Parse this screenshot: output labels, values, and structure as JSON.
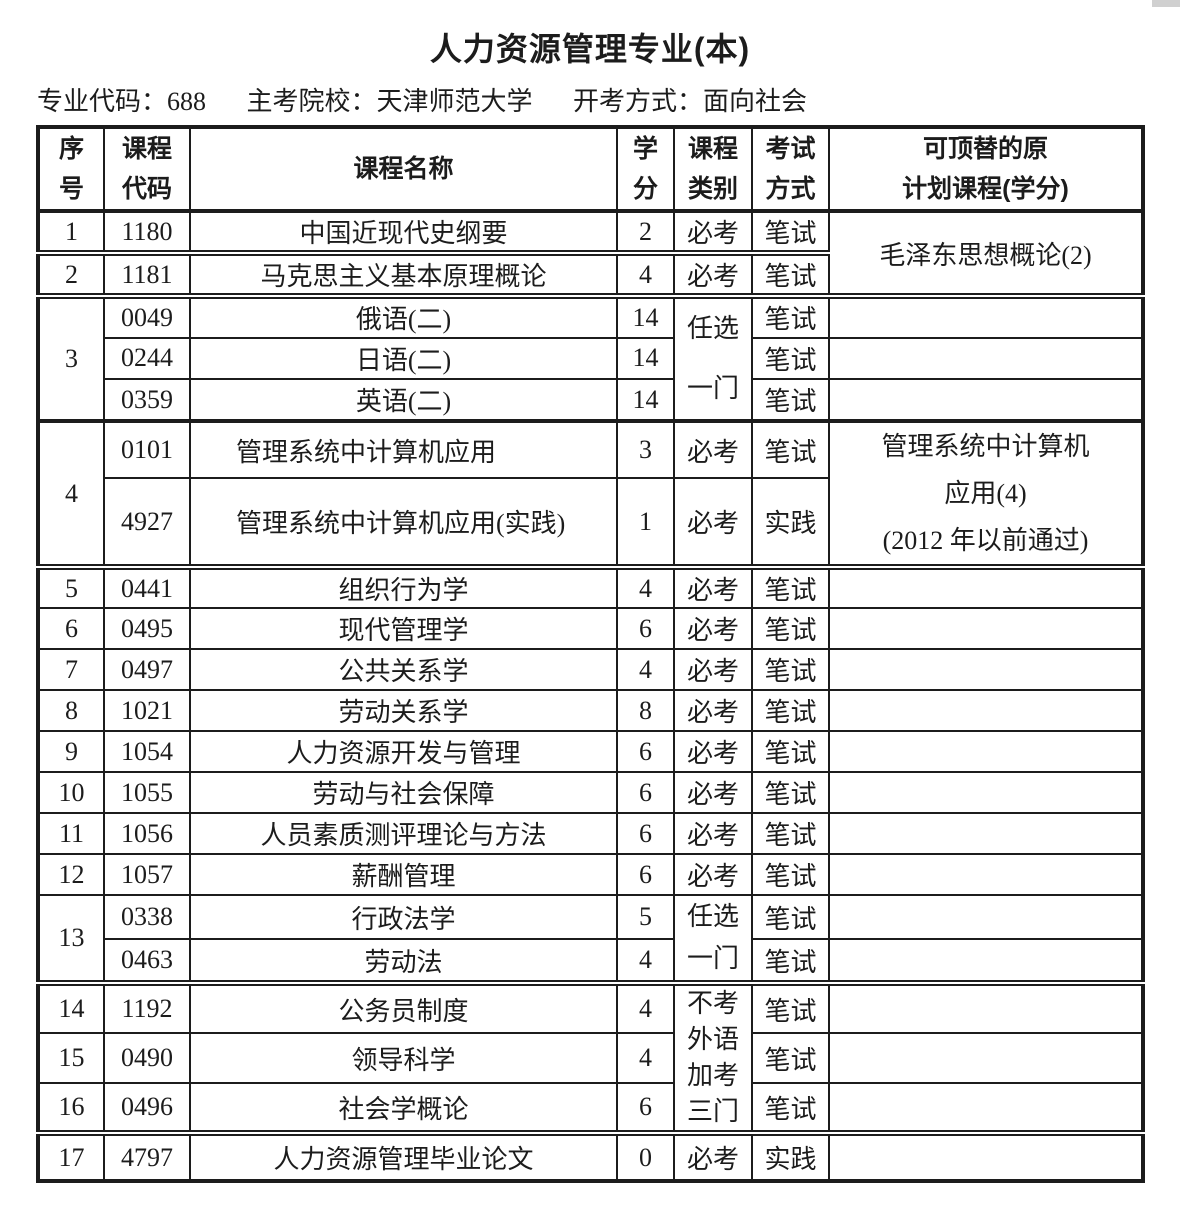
{
  "doc": {
    "title": "人力资源管理专业(本)",
    "meta": [
      "专业代码：688",
      "主考院校：天津师范大学",
      "开考方式：面向社会"
    ]
  },
  "table": {
    "columns": [
      {
        "key": "seq",
        "header_lines": [
          "序",
          "号"
        ]
      },
      {
        "key": "course-code",
        "header_lines": [
          "课程",
          "代码"
        ]
      },
      {
        "key": "course-name",
        "header_lines": [
          "课程名称"
        ]
      },
      {
        "key": "credits",
        "header_lines": [
          "学",
          "分"
        ]
      },
      {
        "key": "course-type",
        "header_lines": [
          "课程",
          "类别"
        ]
      },
      {
        "key": "exam-method",
        "header_lines": [
          "考试",
          "方式"
        ]
      },
      {
        "key": "replacement",
        "header_lines": [
          "可顶替的原",
          "计划课程(学分)"
        ]
      }
    ],
    "rows": [
      [
        {
          "text": "1"
        },
        {
          "text": "1180"
        },
        {
          "text": "中国近现代史纲要"
        },
        {
          "text": "2"
        },
        {
          "text": "必考"
        },
        {
          "text": "笔试"
        },
        {
          "text": "毛泽东思想概论(2)",
          "rowspan": 2
        }
      ],
      [
        {
          "text": "2"
        },
        {
          "text": "1181"
        },
        {
          "text": "马克思主义基本原理概论"
        },
        {
          "text": "4"
        },
        {
          "text": "必考"
        },
        {
          "text": "笔试"
        }
      ],
      [
        {
          "text": "3",
          "rowspan": 3
        },
        {
          "text": "0049"
        },
        {
          "text": "俄语(二)"
        },
        {
          "text": "14"
        },
        {
          "lines": [
            "任选",
            "一门"
          ],
          "rowspan": 3
        },
        {
          "text": "笔试"
        },
        {
          "text": ""
        }
      ],
      [
        {
          "text": "0244"
        },
        {
          "text": "日语(二)"
        },
        {
          "text": "14"
        },
        {
          "text": "笔试"
        },
        {
          "text": ""
        }
      ],
      [
        {
          "text": "0359"
        },
        {
          "text": "英语(二)"
        },
        {
          "text": "14"
        },
        {
          "text": "笔试"
        },
        {
          "text": ""
        }
      ],
      [
        {
          "text": "4",
          "rowspan": 2
        },
        {
          "text": "0101"
        },
        {
          "text": "管理系统中计算机应用",
          "align": "left"
        },
        {
          "text": "3"
        },
        {
          "text": "必考"
        },
        {
          "text": "笔试"
        },
        {
          "lines": [
            "管理系统中计算机",
            "应用(4)",
            "(2012 年以前通过)"
          ],
          "rowspan": 2
        }
      ],
      [
        {
          "text": "4927"
        },
        {
          "text": "管理系统中计算机应用(实践)",
          "align": "left"
        },
        {
          "text": "1"
        },
        {
          "text": "必考"
        },
        {
          "text": "实践"
        }
      ],
      [
        {
          "text": "5"
        },
        {
          "text": "0441"
        },
        {
          "text": "组织行为学"
        },
        {
          "text": "4"
        },
        {
          "text": "必考"
        },
        {
          "text": "笔试"
        },
        {
          "text": ""
        }
      ],
      [
        {
          "text": "6"
        },
        {
          "text": "0495"
        },
        {
          "text": "现代管理学"
        },
        {
          "text": "6"
        },
        {
          "text": "必考"
        },
        {
          "text": "笔试"
        },
        {
          "text": ""
        }
      ],
      [
        {
          "text": "7"
        },
        {
          "text": "0497"
        },
        {
          "text": "公共关系学"
        },
        {
          "text": "4"
        },
        {
          "text": "必考"
        },
        {
          "text": "笔试"
        },
        {
          "text": ""
        }
      ],
      [
        {
          "text": "8"
        },
        {
          "text": "1021"
        },
        {
          "text": "劳动关系学"
        },
        {
          "text": "8"
        },
        {
          "text": "必考"
        },
        {
          "text": "笔试"
        },
        {
          "text": ""
        }
      ],
      [
        {
          "text": "9"
        },
        {
          "text": "1054"
        },
        {
          "text": "人力资源开发与管理"
        },
        {
          "text": "6"
        },
        {
          "text": "必考"
        },
        {
          "text": "笔试"
        },
        {
          "text": ""
        }
      ],
      [
        {
          "text": "10"
        },
        {
          "text": "1055"
        },
        {
          "text": "劳动与社会保障"
        },
        {
          "text": "6"
        },
        {
          "text": "必考"
        },
        {
          "text": "笔试"
        },
        {
          "text": ""
        }
      ],
      [
        {
          "text": "11"
        },
        {
          "text": "1056"
        },
        {
          "text": "人员素质测评理论与方法"
        },
        {
          "text": "6"
        },
        {
          "text": "必考"
        },
        {
          "text": "笔试"
        },
        {
          "text": ""
        }
      ],
      [
        {
          "text": "12"
        },
        {
          "text": "1057"
        },
        {
          "text": "薪酬管理"
        },
        {
          "text": "6"
        },
        {
          "text": "必考"
        },
        {
          "text": "笔试"
        },
        {
          "text": ""
        }
      ],
      [
        {
          "text": "13",
          "rowspan": 2
        },
        {
          "text": "0338"
        },
        {
          "text": "行政法学"
        },
        {
          "text": "5"
        },
        {
          "lines": [
            "任选",
            "一门"
          ],
          "rowspan": 2
        },
        {
          "text": "笔试"
        },
        {
          "text": ""
        }
      ],
      [
        {
          "text": "0463"
        },
        {
          "text": "劳动法"
        },
        {
          "text": "4"
        },
        {
          "text": "笔试"
        },
        {
          "text": ""
        }
      ],
      [
        {
          "text": "14"
        },
        {
          "text": "1192"
        },
        {
          "text": "公务员制度"
        },
        {
          "text": "4"
        },
        {
          "lines": [
            "不考",
            "外语",
            "加考",
            "三门"
          ],
          "rowspan": 3
        },
        {
          "text": "笔试"
        },
        {
          "text": ""
        }
      ],
      [
        {
          "text": "15"
        },
        {
          "text": "0490"
        },
        {
          "text": "领导科学"
        },
        {
          "text": "4"
        },
        {
          "text": "笔试"
        },
        {
          "text": ""
        }
      ],
      [
        {
          "text": "16"
        },
        {
          "text": "0496"
        },
        {
          "text": "社会学概论"
        },
        {
          "text": "6"
        },
        {
          "text": "笔试"
        },
        {
          "text": ""
        }
      ],
      [
        {
          "text": "17"
        },
        {
          "text": "4797"
        },
        {
          "text": "人力资源管理毕业论文"
        },
        {
          "text": "0"
        },
        {
          "text": "必考"
        },
        {
          "text": "实践"
        },
        {
          "text": ""
        }
      ]
    ]
  }
}
